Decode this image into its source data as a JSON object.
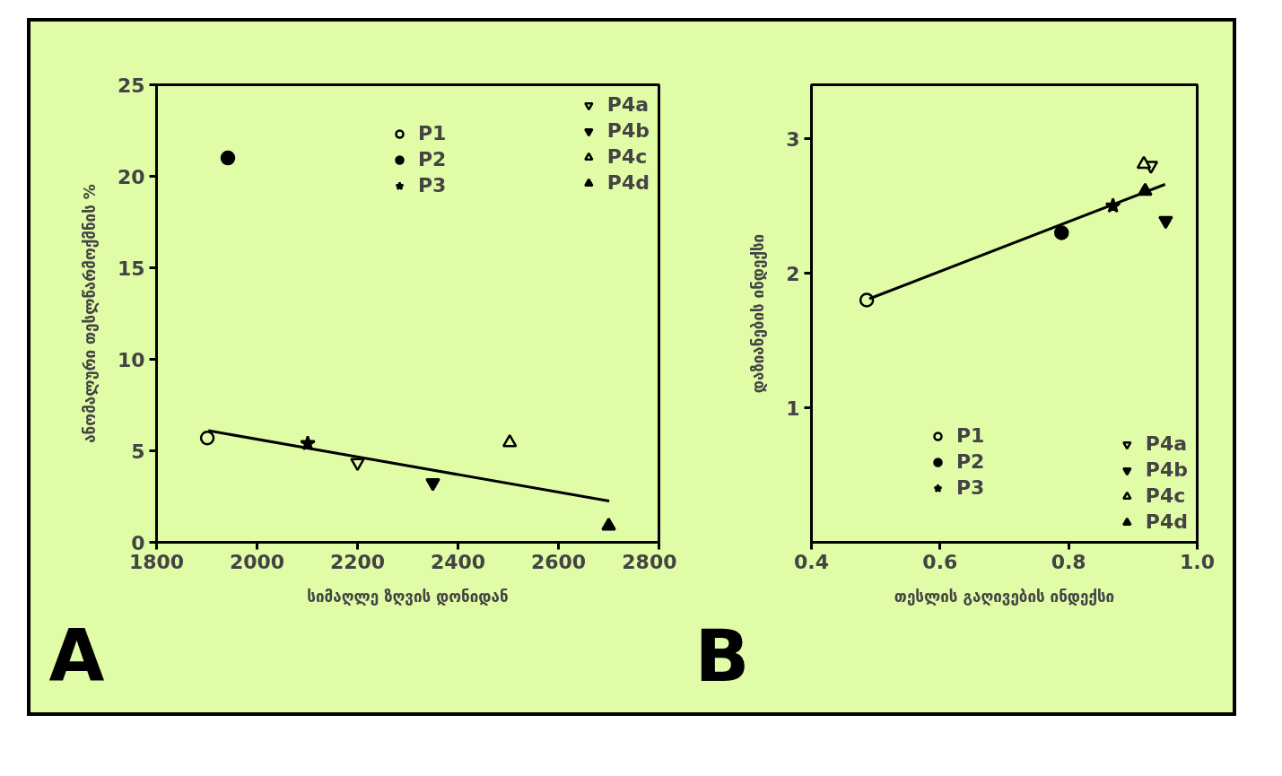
{
  "chart_data": [
    {
      "type": "scatter",
      "xlabel": "სიმაღლე ზღვის დონიდან",
      "ylabel": "ანომალური თესლწარმოქმნის %",
      "annotations": [
        "A"
      ],
      "xlim": [
        1800,
        2800
      ],
      "ylim": [
        0,
        25
      ],
      "xticks": [
        1800,
        2000,
        2200,
        2400,
        2600,
        2800
      ],
      "yticks": [
        0,
        5,
        10,
        15,
        20,
        25
      ],
      "grid": false,
      "legend": "top right",
      "series": [
        {
          "name": "P1",
          "color": "#e0fca6",
          "marker": "circle",
          "x": [
            1901
          ],
          "values": [
            5.7
          ]
        },
        {
          "name": "P2",
          "color": "#000000",
          "marker": "circle",
          "x": [
            1942
          ],
          "values": [
            21.0
          ]
        },
        {
          "name": "P3",
          "color": "#000000",
          "marker": "star",
          "x": [
            2101
          ],
          "values": [
            5.4
          ]
        },
        {
          "name": "P4a",
          "color": "#e0fca6",
          "marker": "triangle_down",
          "x": [
            2200
          ],
          "values": [
            4.35
          ]
        },
        {
          "name": "P4b",
          "color": "#000000",
          "marker": "triangle_down",
          "x": [
            2350
          ],
          "values": [
            3.25
          ]
        },
        {
          "name": "P4c",
          "color": "#e0fca6",
          "marker": "triangle",
          "x": [
            2503
          ],
          "values": [
            5.45
          ]
        },
        {
          "name": "P4d",
          "color": "#000000",
          "marker": "triangle",
          "x": [
            2700
          ],
          "values": [
            0.9
          ]
        },
        {
          "type": "line",
          "color": "#000000",
          "x": [
            1903,
            2701
          ],
          "values": [
            6.1,
            2.25
          ]
        }
      ]
    },
    {
      "type": "scatter",
      "xlabel": "თესლის გაღივების ინდექსი",
      "ylabel": "დაზიანების ინდექსი",
      "annotations": [
        "B"
      ],
      "xlim": [
        0.4,
        1.0
      ],
      "ylim": [
        0,
        3.4
      ],
      "xticks": [
        {
          "value": 0.4,
          "label": "0.4"
        },
        {
          "value": 0.6,
          "label": "0.6"
        },
        {
          "value": 0.8,
          "label": "0.8"
        },
        {
          "value": 1.0,
          "label": "1.0"
        }
      ],
      "yticks": [
        1,
        2,
        3
      ],
      "grid": false,
      "legend": "bottom right",
      "series": [
        {
          "name": "P1",
          "color": "#e0fca6",
          "marker": "circle",
          "x": [
            0.486
          ],
          "values": [
            1.8
          ]
        },
        {
          "name": "P2",
          "color": "#000000",
          "marker": "circle",
          "x": [
            0.789
          ],
          "values": [
            2.3
          ]
        },
        {
          "name": "P3",
          "color": "#000000",
          "marker": "star",
          "x": [
            0.869
          ],
          "values": [
            2.5
          ]
        },
        {
          "name": "P4a",
          "color": "#e0fca6",
          "marker": "triangle_down",
          "x": [
            0.928
          ],
          "values": [
            2.8
          ]
        },
        {
          "name": "P4b",
          "color": "#000000",
          "marker": "triangle_down",
          "x": [
            0.951
          ],
          "values": [
            2.39
          ]
        },
        {
          "name": "P4c",
          "color": "#e0fca6",
          "marker": "triangle",
          "x": [
            0.917
          ],
          "values": [
            2.81
          ]
        },
        {
          "name": "P4d",
          "color": "#000000",
          "marker": "triangle",
          "x": [
            0.919
          ],
          "values": [
            2.61
          ]
        },
        {
          "type": "line",
          "color": "#000000",
          "x": [
            0.49,
            0.95
          ],
          "values": [
            1.81,
            2.66
          ]
        }
      ]
    }
  ]
}
